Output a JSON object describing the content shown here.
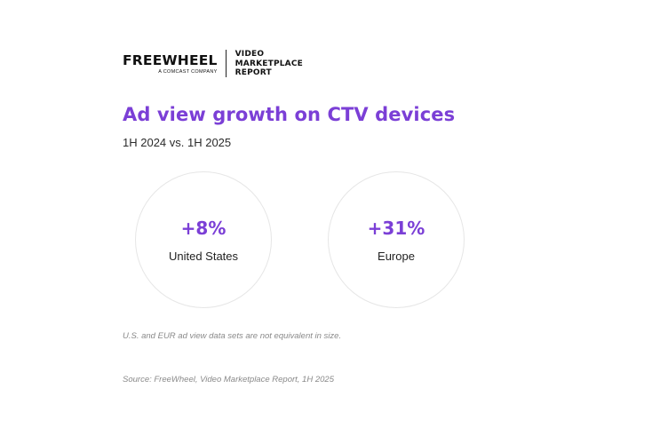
{
  "header": {
    "logo_text": "FREEWHEEL",
    "logo_sub": "A COMCAST COMPANY",
    "report_lines": [
      "VIDEO",
      "MARKETPLACE",
      "REPORT"
    ]
  },
  "title": "Ad view growth on CTV devices",
  "subtitle": "1H 2024 vs. 1H 2025",
  "stats": [
    {
      "value": "+8%",
      "label": "United States"
    },
    {
      "value": "+31%",
      "label": "Europe"
    }
  ],
  "note": "U.S. and EUR ad view data sets are not equivalent in size.",
  "source": "Source: FreeWheel, Video Marketplace Report, 1H 2025",
  "colors": {
    "accent": "#7b3fd6",
    "text": "#1a1a1a",
    "muted": "#8a8a8a"
  }
}
